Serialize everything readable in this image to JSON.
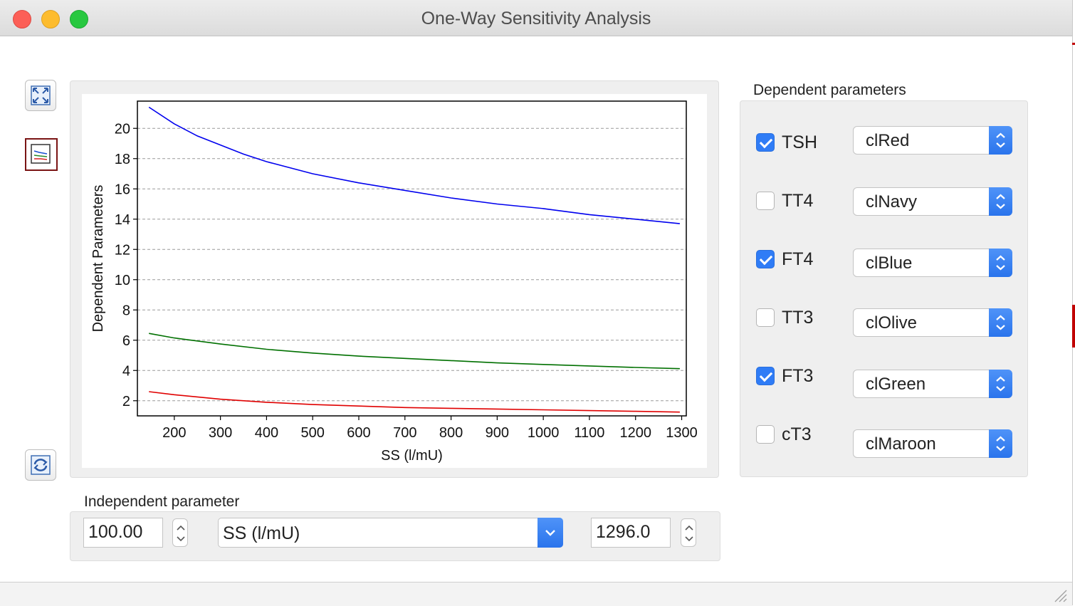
{
  "window": {
    "title": "One-Way Sensitivity Analysis"
  },
  "toolbar": {
    "fullscreen_icon": "fullscreen-icon",
    "graph_icon": "graph-icon",
    "refresh_icon": "refresh-icon"
  },
  "dependent": {
    "label": "Dependent parameters",
    "params": [
      {
        "name": "TSH",
        "checked": true,
        "color": "clRed"
      },
      {
        "name": "TT4",
        "checked": false,
        "color": "clNavy"
      },
      {
        "name": "FT4",
        "checked": true,
        "color": "clBlue"
      },
      {
        "name": "TT3",
        "checked": false,
        "color": "clOlive"
      },
      {
        "name": "FT3",
        "checked": true,
        "color": "clGreen"
      },
      {
        "name": "cT3",
        "checked": false,
        "color": "clMaroon"
      }
    ]
  },
  "independent": {
    "label": "Independent parameter",
    "min_value": "100.00",
    "parameter": "SS (l/mU)",
    "max_value": "1296.0"
  },
  "chart_data": {
    "type": "line",
    "xlabel": "SS (l/mU)",
    "ylabel": "Dependent Parameters",
    "xlim": [
      120,
      1310
    ],
    "ylim": [
      1,
      21.8
    ],
    "xticks": [
      200,
      300,
      400,
      500,
      600,
      700,
      800,
      900,
      1000,
      1100,
      1200,
      1300
    ],
    "yticks": [
      2,
      4,
      6,
      8,
      10,
      12,
      14,
      16,
      18,
      20
    ],
    "grid": "horizontal dashed",
    "series": [
      {
        "color": "#0000ee",
        "x": [
          145,
          200,
          250,
          300,
          350,
          400,
          500,
          600,
          700,
          800,
          900,
          1000,
          1100,
          1200,
          1296
        ],
        "y": [
          21.4,
          20.3,
          19.5,
          18.9,
          18.3,
          17.8,
          17.0,
          16.4,
          15.9,
          15.4,
          15.0,
          14.7,
          14.3,
          14.0,
          13.7
        ]
      },
      {
        "color": "#007000",
        "x": [
          145,
          200,
          300,
          400,
          500,
          600,
          700,
          800,
          900,
          1000,
          1100,
          1200,
          1296
        ],
        "y": [
          6.45,
          6.15,
          5.75,
          5.4,
          5.15,
          4.95,
          4.8,
          4.65,
          4.5,
          4.4,
          4.3,
          4.2,
          4.12
        ]
      },
      {
        "color": "#e00000",
        "x": [
          145,
          200,
          300,
          400,
          500,
          600,
          700,
          800,
          900,
          1000,
          1100,
          1200,
          1296
        ],
        "y": [
          2.6,
          2.4,
          2.1,
          1.9,
          1.75,
          1.65,
          1.55,
          1.5,
          1.45,
          1.4,
          1.35,
          1.3,
          1.25
        ]
      }
    ]
  }
}
